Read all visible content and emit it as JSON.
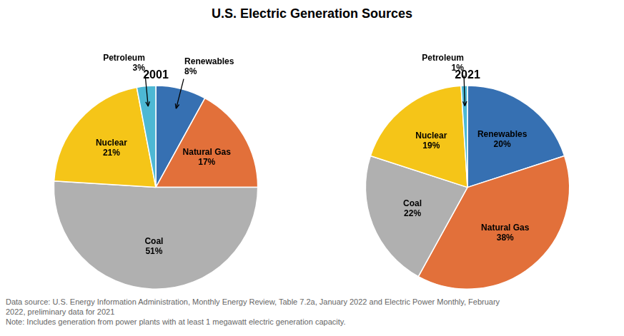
{
  "title": "U.S. Electric Generation Sources",
  "chart_data": [
    {
      "type": "pie",
      "title": "2001",
      "categories": [
        "Renewables",
        "Natural Gas",
        "Coal",
        "Nuclear",
        "Petroleum"
      ],
      "values": [
        8,
        17,
        51,
        21,
        3
      ],
      "value_labels": [
        "8%",
        "17%",
        "51%",
        "21%",
        "3%"
      ],
      "colors": [
        "#3670B2",
        "#E2703A",
        "#B0B0B0",
        "#F5C518",
        "#4DB8D4"
      ],
      "data_labels": true
    },
    {
      "type": "pie",
      "title": "2021",
      "categories": [
        "Renewables",
        "Natural Gas",
        "Coal",
        "Nuclear",
        "Petroleum"
      ],
      "values": [
        20,
        38,
        22,
        19,
        1
      ],
      "value_labels": [
        "20%",
        "38%",
        "22%",
        "19%",
        "1%"
      ],
      "colors": [
        "#3670B2",
        "#E2703A",
        "#B0B0B0",
        "#F5C518",
        "#4DB8D4"
      ],
      "data_labels": true
    }
  ],
  "annotations": [
    "Data source: U.S. Energy Information Administration, Monthly Energy Review, Table 7.2a, January 2022 and Electric Power Monthly, February",
    "2022, preliminary data for 2021",
    "Note: Includes generation from power plants with at least 1 megawatt electric generation capacity."
  ]
}
